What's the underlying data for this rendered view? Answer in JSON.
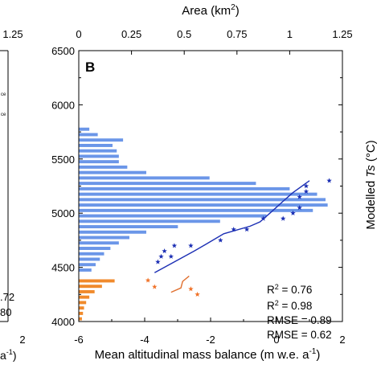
{
  "chart_data": {
    "type": "bar",
    "panel_label": "B",
    "top_axis": {
      "label": "Area (km",
      "label_sup": "2",
      "label_end": ")",
      "range": [
        0,
        1.25
      ],
      "ticks": [
        "0",
        "0.25",
        "0.5",
        "0.75",
        "1",
        "1.25"
      ],
      "left_panel_tick": "1.25"
    },
    "bottom_axis": {
      "label": "Mean altitudinal mass balance (m w.e. a",
      "label_sup": "-1",
      "label_end": ")",
      "range": [
        -6,
        2
      ],
      "ticks": [
        "-6",
        "-4",
        "-2",
        "0",
        "2"
      ],
      "left_panel_tick": "2",
      "left_panel_label_fragment": "a",
      "left_panel_label_sup": "-1",
      "left_panel_label_end": ")"
    },
    "left_axis": {
      "range": [
        4000,
        6500
      ],
      "ticks": [
        "4000",
        "4500",
        "5000",
        "5500",
        "6000",
        "6500"
      ]
    },
    "right_axis": {
      "label": "Modelled ",
      "label_italic": "Ts",
      "label_end": " (°C)"
    },
    "colors": {
      "area_blue": "#6b96e8",
      "area_orange": "#f08a2c",
      "star_blue": "#1c2fb4",
      "star_orange": "#f0732a",
      "line_blue": "#1c2fb4",
      "line_orange": "#e07030"
    },
    "area_bins": {
      "bin_height_m": 50,
      "blue": [
        {
          "z": 4450,
          "area": 0.06
        },
        {
          "z": 4500,
          "area": 0.08
        },
        {
          "z": 4550,
          "area": 0.1
        },
        {
          "z": 4600,
          "area": 0.12
        },
        {
          "z": 4650,
          "area": 0.15
        },
        {
          "z": 4700,
          "area": 0.19
        },
        {
          "z": 4750,
          "area": 0.24
        },
        {
          "z": 4800,
          "area": 0.32
        },
        {
          "z": 4850,
          "area": 0.47
        },
        {
          "z": 4900,
          "area": 0.67
        },
        {
          "z": 4950,
          "area": 0.89
        },
        {
          "z": 5000,
          "area": 1.11
        },
        {
          "z": 5050,
          "area": 1.18
        },
        {
          "z": 5100,
          "area": 1.17
        },
        {
          "z": 5150,
          "area": 1.13
        },
        {
          "z": 5200,
          "area": 1.0
        },
        {
          "z": 5250,
          "area": 0.84
        },
        {
          "z": 5300,
          "area": 0.62
        },
        {
          "z": 5350,
          "area": 0.32
        },
        {
          "z": 5400,
          "area": 0.23
        },
        {
          "z": 5450,
          "area": 0.19
        },
        {
          "z": 5500,
          "area": 0.19
        },
        {
          "z": 5550,
          "area": 0.18
        },
        {
          "z": 5600,
          "area": 0.16
        },
        {
          "z": 5650,
          "area": 0.21
        },
        {
          "z": 5700,
          "area": 0.09
        },
        {
          "z": 5750,
          "area": 0.05
        }
      ],
      "orange": [
        {
          "z": 4000,
          "area": 0.015
        },
        {
          "z": 4050,
          "area": 0.02
        },
        {
          "z": 4100,
          "area": 0.025
        },
        {
          "z": 4150,
          "area": 0.035
        },
        {
          "z": 4200,
          "area": 0.05
        },
        {
          "z": 4250,
          "area": 0.075
        },
        {
          "z": 4300,
          "area": 0.11
        },
        {
          "z": 4350,
          "area": 0.17
        }
      ]
    },
    "series": [
      {
        "kind": "stars",
        "color": "#1c2fb4",
        "points": [
          {
            "x": -3.6,
            "y": 4550
          },
          {
            "x": -3.5,
            "y": 4600
          },
          {
            "x": -3.4,
            "y": 4650
          },
          {
            "x": -3.2,
            "y": 4600
          },
          {
            "x": -3.1,
            "y": 4700
          },
          {
            "x": -2.6,
            "y": 4700
          },
          {
            "x": -1.7,
            "y": 4750
          },
          {
            "x": -1.3,
            "y": 4850
          },
          {
            "x": -0.9,
            "y": 4850
          },
          {
            "x": -0.4,
            "y": 4950
          },
          {
            "x": 0.2,
            "y": 4950
          },
          {
            "x": 0.5,
            "y": 5000
          },
          {
            "x": 0.7,
            "y": 5050
          },
          {
            "x": 0.7,
            "y": 5150
          },
          {
            "x": 0.9,
            "y": 5200
          },
          {
            "x": 0.9,
            "y": 5250
          },
          {
            "x": 1.6,
            "y": 5300
          }
        ]
      },
      {
        "kind": "stars",
        "color": "#f0732a",
        "points": [
          {
            "x": -3.9,
            "y": 4380
          },
          {
            "x": -3.7,
            "y": 4320
          },
          {
            "x": -2.6,
            "y": 4300
          },
          {
            "x": -2.4,
            "y": 4250
          }
        ]
      },
      {
        "kind": "line",
        "color": "#1c2fb4",
        "points": [
          {
            "x": -3.7,
            "y": 4450
          },
          {
            "x": -2.5,
            "y": 4650
          },
          {
            "x": -2.1,
            "y": 4720
          },
          {
            "x": -1.6,
            "y": 4810
          },
          {
            "x": -0.8,
            "y": 4880
          },
          {
            "x": -0.5,
            "y": 4920
          },
          {
            "x": -0.2,
            "y": 5000
          },
          {
            "x": 0.2,
            "y": 5110
          },
          {
            "x": 0.5,
            "y": 5190
          },
          {
            "x": 1.0,
            "y": 5300
          }
        ]
      },
      {
        "kind": "line",
        "color": "#e07030",
        "points": [
          {
            "x": -3.2,
            "y": 4270
          },
          {
            "x": -2.9,
            "y": 4310
          },
          {
            "x": -2.85,
            "y": 4370
          },
          {
            "x": -2.65,
            "y": 4420
          }
        ]
      }
    ],
    "stats": [
      {
        "name": "R",
        "sup": "2",
        "value": " = 0.76",
        "color": "#f0732a"
      },
      {
        "name": "R",
        "sup": "2",
        "value": " = 0.98",
        "color": "#1c2fb4"
      },
      {
        "name": "RMSE",
        "sup": "",
        "value": " = 0.89",
        "color": "#f0732a"
      },
      {
        "name": "RMSE",
        "sup": "",
        "value": " = 0.62",
        "color": "#1c2fb4"
      }
    ],
    "left_panel_fragments": {
      "legend_lines": [
        "ce",
        "ce"
      ],
      "stats": [
        {
          "text": ".72",
          "color": "#f0732a"
        },
        {
          "text": "80",
          "color": "#1c2fb4"
        }
      ]
    }
  }
}
